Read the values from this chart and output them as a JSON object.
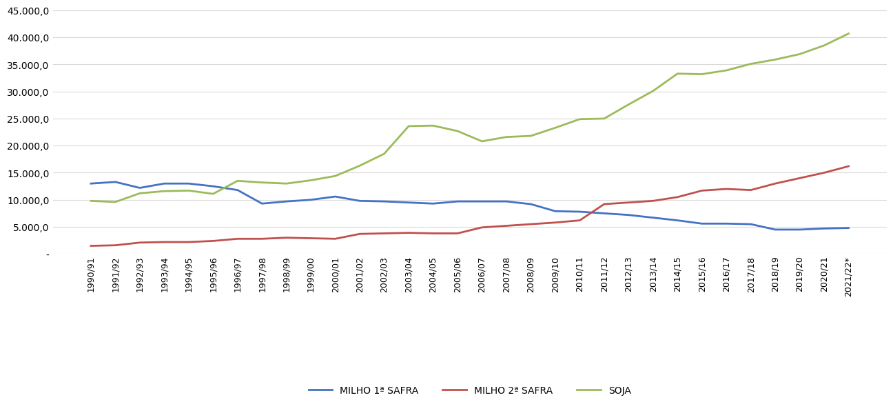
{
  "years": [
    "1990/91",
    "1991/92",
    "1992/93",
    "1993/94",
    "1994/95",
    "1995/96",
    "1996/97",
    "1997/98",
    "1998/99",
    "1999/00",
    "2000/01",
    "2001/02",
    "2002/03",
    "2003/04",
    "2004/05",
    "2005/06",
    "2006/07",
    "2007/08",
    "2008/09",
    "2009/10",
    "2010/11",
    "2011/12",
    "2012/13",
    "2013/14",
    "2014/15",
    "2015/16",
    "2016/17",
    "2017/18",
    "2018/19",
    "2019/20",
    "2020/21",
    "2021/22*"
  ],
  "milho1": [
    13000,
    13300,
    12200,
    13000,
    13000,
    12500,
    11800,
    9300,
    9700,
    10000,
    10600,
    9800,
    9700,
    9500,
    9300,
    9700,
    9700,
    9700,
    9200,
    7900,
    7800,
    7500,
    7200,
    6700,
    6200,
    5600,
    5600,
    5500,
    4500,
    4500,
    4700,
    4800
  ],
  "milho2": [
    1500,
    1600,
    2100,
    2200,
    2200,
    2400,
    2800,
    2800,
    3000,
    2900,
    2800,
    3700,
    3800,
    3900,
    3800,
    3800,
    4900,
    5200,
    5500,
    5800,
    6200,
    9200,
    9500,
    9800,
    10500,
    11700,
    12000,
    11800,
    13000,
    14000,
    15000,
    16200
  ],
  "soja": [
    9800,
    9600,
    11200,
    11600,
    11700,
    11100,
    13500,
    13200,
    13000,
    13600,
    14400,
    16300,
    18500,
    23600,
    23700,
    22700,
    20800,
    21600,
    21800,
    23300,
    24900,
    25000,
    27600,
    30100,
    33300,
    33200,
    33900,
    35100,
    35900,
    36900,
    38500,
    40700
  ],
  "milho1_color": "#4472C4",
  "milho2_color": "#C0504D",
  "soja_color": "#9BBB59",
  "legend_labels": [
    "MILHO 1ª SAFRA",
    "MILHO 2ª SAFRA",
    "SOJA"
  ],
  "ylim_min": 0,
  "ylim_max": 45000,
  "ytick_step": 5000,
  "background_color": "#FFFFFF",
  "grid_color": "#D9D9D9",
  "line_width": 2.0
}
